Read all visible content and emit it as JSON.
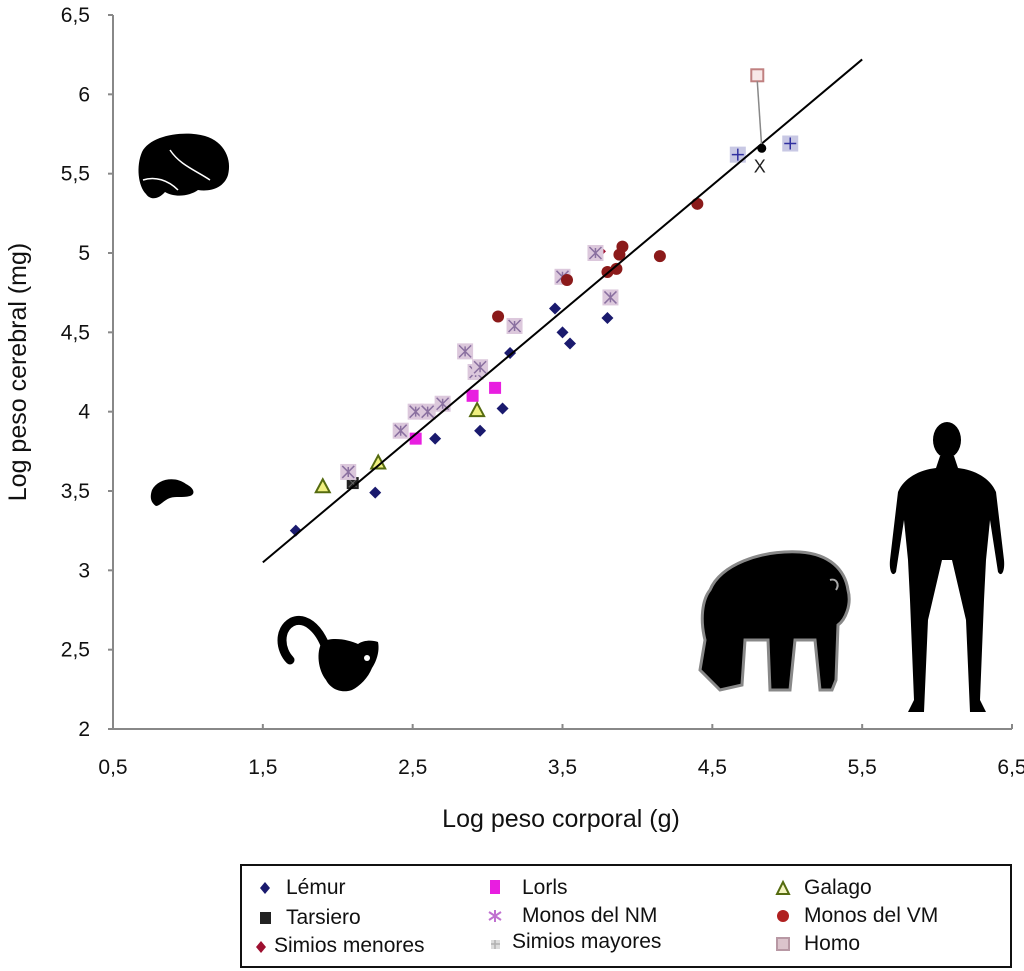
{
  "chart_data": {
    "type": "scatter",
    "title": "",
    "xlabel": "Log peso corporal (g)",
    "ylabel": "Log peso cerebral (mg)",
    "xlim": [
      0.5,
      6.5
    ],
    "ylim": [
      2,
      6.5
    ],
    "x_ticks": [
      "0,5",
      "1,5",
      "2,5",
      "3,5",
      "4,5",
      "5,5",
      "6,5"
    ],
    "x_tick_values": [
      0.5,
      1.5,
      2.5,
      3.5,
      4.5,
      5.5,
      6.5
    ],
    "y_ticks": [
      "2",
      "2,5",
      "3",
      "3,5",
      "4",
      "4,5",
      "5",
      "5,5",
      "6",
      "6,5"
    ],
    "y_tick_values": [
      2,
      2.5,
      3,
      3.5,
      4,
      4.5,
      5,
      5.5,
      6,
      6.5
    ],
    "grid": false,
    "legend_placement": "bottom",
    "regression_line": {
      "x": [
        1.5,
        5.5
      ],
      "y": [
        3.05,
        6.22
      ]
    },
    "series": [
      {
        "name": "Lémur",
        "marker": "diamond",
        "color": "#1a1a6e",
        "points": [
          [
            1.72,
            3.25
          ],
          [
            2.25,
            3.49
          ],
          [
            2.65,
            3.83
          ],
          [
            2.95,
            3.88
          ],
          [
            3.1,
            4.02
          ],
          [
            3.15,
            4.37
          ],
          [
            3.45,
            4.65
          ],
          [
            3.5,
            4.5
          ],
          [
            3.55,
            4.43
          ],
          [
            3.8,
            4.59
          ]
        ]
      },
      {
        "name": "Tarsiero",
        "marker": "square",
        "color": "#222222",
        "points": [
          [
            2.1,
            3.55
          ]
        ]
      },
      {
        "name": "Simios menores",
        "marker": "diamond",
        "color": "#9e1030",
        "points": [
          [
            3.75,
            5.01
          ]
        ]
      },
      {
        "name": "Lorls",
        "marker": "square",
        "color": "#e81ee0",
        "points": [
          [
            2.52,
            3.83
          ],
          [
            2.9,
            4.1
          ],
          [
            3.05,
            4.15
          ]
        ]
      },
      {
        "name": "Monos del NM",
        "marker": "asterisk",
        "color": "#b898c8",
        "points": [
          [
            2.07,
            3.62
          ],
          [
            2.42,
            3.88
          ],
          [
            2.52,
            4.0
          ],
          [
            2.6,
            4.0
          ],
          [
            2.7,
            4.05
          ],
          [
            2.85,
            4.38
          ],
          [
            2.92,
            4.25
          ],
          [
            2.95,
            4.28
          ],
          [
            3.18,
            4.54
          ],
          [
            3.5,
            4.85
          ],
          [
            3.72,
            5.0
          ],
          [
            3.82,
            4.72
          ]
        ]
      },
      {
        "name": "Simios mayores",
        "marker": "plus",
        "color": "#c0c0e0",
        "points": [
          [
            4.67,
            5.62
          ],
          [
            5.02,
            5.69
          ]
        ]
      },
      {
        "name": "Galago",
        "marker": "triangle",
        "color": "#e0e040",
        "points": [
          [
            1.9,
            3.53
          ],
          [
            2.27,
            3.68
          ],
          [
            2.93,
            4.01
          ]
        ]
      },
      {
        "name": "Monos del VM",
        "marker": "circle",
        "color": "#8b1a1a",
        "points": [
          [
            3.07,
            4.6
          ],
          [
            3.53,
            4.83
          ],
          [
            3.8,
            4.88
          ],
          [
            3.86,
            4.9
          ],
          [
            3.88,
            4.99
          ],
          [
            3.9,
            5.04
          ],
          [
            4.15,
            4.98
          ],
          [
            4.4,
            5.31
          ]
        ]
      },
      {
        "name": "Homo",
        "marker": "square-open",
        "color": "#e0a0a0",
        "points": [
          [
            4.8,
            6.12
          ]
        ]
      }
    ],
    "annotations": [
      {
        "type": "predicted-point",
        "label": "X",
        "x": 4.83,
        "y": 5.66,
        "connects_to": [
          4.8,
          6.12
        ]
      }
    ],
    "illustrations": [
      "brain-large",
      "brain-small",
      "lemur-silhouette",
      "chimpanzee-silhouette",
      "human-silhouette"
    ]
  },
  "legend": {
    "items": [
      {
        "label": "Lémur",
        "marker": "diamond",
        "color": "#1a1a6e"
      },
      {
        "label": "Tarsiero",
        "marker": "square",
        "color": "#222222"
      },
      {
        "label": "Simios menores",
        "marker": "diamond",
        "color": "#9e1030"
      },
      {
        "label": "Lorls",
        "marker": "square",
        "color": "#e81ee0"
      },
      {
        "label": "Monos del NM",
        "marker": "asterisk",
        "color": "#c070d0"
      },
      {
        "label": "Simios mayores",
        "marker": "plus",
        "color": "#c8c8c8"
      },
      {
        "label": "Galago",
        "marker": "triangle",
        "color": "#7a8a20"
      },
      {
        "label": "Monos del VM",
        "marker": "circle",
        "color": "#b02020"
      },
      {
        "label": "Homo",
        "marker": "square-open",
        "color": "#c8a8b0"
      }
    ]
  }
}
